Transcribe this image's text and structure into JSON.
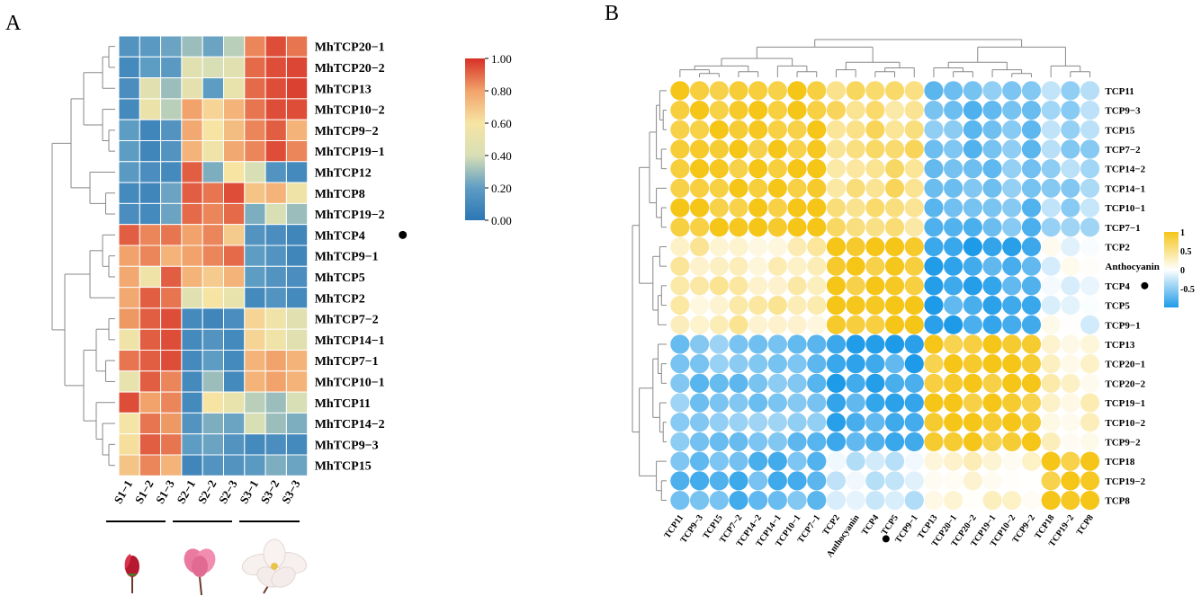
{
  "chart_data": [
    {
      "type": "heatmap",
      "panel_label": "A",
      "rows": [
        "MhTCP20−1",
        "MhTCP20−2",
        "MhTCP13",
        "MhTCP10−2",
        "MhTCP9−2",
        "MhTCP19−1",
        "MhTCP12",
        "MhTCP8",
        "MhTCP19−2",
        "MhTCP4",
        "MhTCP9−1",
        "MhTCP5",
        "MhTCP2",
        "MhTCP7−2",
        "MhTCP14−1",
        "MhTCP7−1",
        "MhTCP10−1",
        "MhTCP11",
        "MhTCP14−2",
        "MhTCP9−3",
        "MhTCP15"
      ],
      "columns": [
        "S1−1",
        "S1−2",
        "S1−3",
        "S2−1",
        "S2−2",
        "S2−3",
        "S3−1",
        "S3−2",
        "S3−3"
      ],
      "marked_row": "MhTCP4",
      "values": [
        [
          0.15,
          0.18,
          0.22,
          0.3,
          0.22,
          0.35,
          0.85,
          0.95,
          0.88
        ],
        [
          0.1,
          0.2,
          0.18,
          0.45,
          0.4,
          0.45,
          0.9,
          0.95,
          0.96
        ],
        [
          0.12,
          0.45,
          0.3,
          0.48,
          0.2,
          0.5,
          0.9,
          0.95,
          0.97
        ],
        [
          0.1,
          0.52,
          0.35,
          0.8,
          0.65,
          0.75,
          0.88,
          0.95,
          0.95
        ],
        [
          0.2,
          0.08,
          0.15,
          0.78,
          0.6,
          0.72,
          0.85,
          0.92,
          0.75
        ],
        [
          0.2,
          0.08,
          0.15,
          0.75,
          0.55,
          0.78,
          0.85,
          0.95,
          0.85
        ],
        [
          0.18,
          0.12,
          0.1,
          0.92,
          0.25,
          0.6,
          0.4,
          0.15,
          0.1
        ],
        [
          0.1,
          0.08,
          0.22,
          0.92,
          0.88,
          0.95,
          0.7,
          0.75,
          0.55
        ],
        [
          0.12,
          0.1,
          0.22,
          0.9,
          0.85,
          0.9,
          0.25,
          0.4,
          0.3
        ],
        [
          0.92,
          0.85,
          0.88,
          0.8,
          0.85,
          0.68,
          0.15,
          0.12,
          0.08
        ],
        [
          0.8,
          0.85,
          0.75,
          0.8,
          0.85,
          0.9,
          0.2,
          0.15,
          0.08
        ],
        [
          0.78,
          0.55,
          0.92,
          0.75,
          0.68,
          0.75,
          0.2,
          0.15,
          0.12
        ],
        [
          0.78,
          0.92,
          0.88,
          0.45,
          0.6,
          0.5,
          0.1,
          0.15,
          0.1
        ],
        [
          0.82,
          0.92,
          0.95,
          0.1,
          0.08,
          0.12,
          0.65,
          0.55,
          0.45
        ],
        [
          0.55,
          0.92,
          0.95,
          0.1,
          0.15,
          0.1,
          0.65,
          0.55,
          0.45
        ],
        [
          0.88,
          0.92,
          0.95,
          0.1,
          0.2,
          0.1,
          0.75,
          0.8,
          0.75
        ],
        [
          0.5,
          0.92,
          0.85,
          0.1,
          0.3,
          0.1,
          0.75,
          0.8,
          0.75
        ],
        [
          0.95,
          0.8,
          0.85,
          0.1,
          0.6,
          0.5,
          0.35,
          0.3,
          0.4
        ],
        [
          0.58,
          0.88,
          0.82,
          0.15,
          0.25,
          0.22,
          0.4,
          0.3,
          0.25
        ],
        [
          0.62,
          0.92,
          0.88,
          0.2,
          0.22,
          0.15,
          0.1,
          0.12,
          0.1
        ],
        [
          0.7,
          0.85,
          0.75,
          0.08,
          0.15,
          0.15,
          0.18,
          0.25,
          0.22
        ]
      ],
      "color_scale": {
        "min": 0.0,
        "max": 1.0,
        "ticks": [
          "0.00",
          "0.20",
          "0.40",
          "0.60",
          "0.80",
          "1.00"
        ],
        "colors": [
          "#2c76b6",
          "#5e9dc3",
          "#d8dfb5",
          "#f7e4a3",
          "#f1a36b",
          "#d73027"
        ]
      }
    },
    {
      "type": "heatmap",
      "panel_label": "B",
      "labels": [
        "TCP11",
        "TCP9−3",
        "TCP15",
        "TCP7−2",
        "TCP14−2",
        "TCP14−1",
        "TCP10−1",
        "TCP7−1",
        "TCP2",
        "Anthocyanin",
        "TCP4",
        "TCP5",
        "TCP9−1",
        "TCP13",
        "TCP20−1",
        "TCP20−2",
        "TCP19−1",
        "TCP10−2",
        "TCP9−2",
        "TCP18",
        "TCP19−2",
        "TCP8"
      ],
      "marked_label": "TCP4",
      "groups": [
        [
          0,
          8
        ],
        [
          8,
          13
        ],
        [
          13,
          19
        ],
        [
          19,
          22
        ]
      ],
      "group_correlations": [
        [
          0.95,
          0.55,
          -0.65,
          -0.4
        ],
        [
          0.3,
          0.95,
          -0.85,
          -0.05
        ],
        [
          -0.6,
          -0.85,
          0.9,
          0.2
        ],
        [
          -0.7,
          -0.2,
          0.15,
          0.9
        ]
      ],
      "color_scale": {
        "min": -1.0,
        "max": 1.0,
        "ticks": [
          "1",
          "0.5",
          "0",
          "-0.5"
        ],
        "colors": [
          "#1e9be8",
          "#ffffff",
          "#f5c518"
        ]
      }
    }
  ],
  "flower_stages": [
    "S1",
    "S2",
    "S3"
  ],
  "colors": {
    "flower_bud": "#b5182f",
    "flower_pink": "#ea7aa0",
    "flower_white": "#f6f1ee"
  }
}
